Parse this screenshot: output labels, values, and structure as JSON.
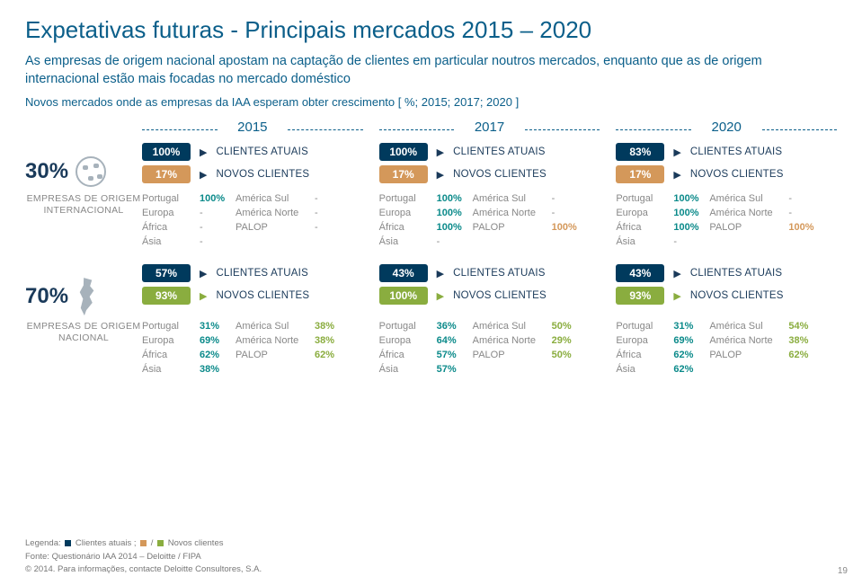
{
  "title": "Expetativas futuras - Principais mercados 2015 – 2020",
  "subtitle": "As empresas de origem nacional apostam na captação de clientes em particular noutros mercados, enquanto que as de origem internacional estão mais focadas no mercado doméstico",
  "context": "Novos mercados onde as empresas da IAA esperam obter crescimento [ %; 2015; 2017; 2020 ]",
  "years": {
    "y15": "2015",
    "y17": "2017",
    "y20": "2020"
  },
  "labels": {
    "clientes_atuais": "CLIENTES ATUAIS",
    "novos_clientes": "NOVOS CLIENTES",
    "emp_int": "EMPRESAS DE ORIGEM INTERNACIONAL",
    "emp_nac": "EMPRESAS DE ORIGEM NACIONAL",
    "portugal": "Portugal",
    "europa": "Europa",
    "africa": "África",
    "asia": "Ásia",
    "am_sul": "América Sul",
    "am_norte": "América Norte",
    "palop": "PALOP"
  },
  "intl": {
    "share": "30%",
    "y15": {
      "ca": "100%",
      "nc": "17%",
      "portugal": "100%",
      "europa": "-",
      "africa": "-",
      "asia": "-",
      "am_sul": "-",
      "am_norte": "-",
      "palop": "-"
    },
    "y17": {
      "ca": "100%",
      "nc": "17%",
      "portugal": "100%",
      "europa": "100%",
      "africa": "100%",
      "asia": "-",
      "am_sul": "-",
      "am_norte": "-",
      "palop": "100%"
    },
    "y20": {
      "ca": "83%",
      "nc": "17%",
      "portugal": "100%",
      "europa": "100%",
      "africa": "100%",
      "asia": "-",
      "am_sul": "-",
      "am_norte": "-",
      "palop": "100%"
    }
  },
  "nac": {
    "share": "70%",
    "y15": {
      "ca": "57%",
      "nc": "93%",
      "portugal": "31%",
      "europa": "69%",
      "africa": "62%",
      "asia": "38%",
      "am_sul": "38%",
      "am_norte": "38%",
      "palop": "62%"
    },
    "y17": {
      "ca": "43%",
      "nc": "100%",
      "portugal": "36%",
      "europa": "64%",
      "africa": "57%",
      "asia": "57%",
      "am_sul": "50%",
      "am_norte": "29%",
      "palop": "50%"
    },
    "y20": {
      "ca": "43%",
      "nc": "93%",
      "portugal": "31%",
      "europa": "69%",
      "africa": "62%",
      "asia": "62%",
      "am_sul": "54%",
      "am_norte": "38%",
      "palop": "62%"
    }
  },
  "footer": {
    "legenda_pre": "Legenda:",
    "legenda_ca": "Clientes atuais ;",
    "legenda_sep": "/",
    "legenda_nc": "Novos clientes",
    "fonte": "Fonte: Questionário IAA 2014 – Deloitte / FIPA",
    "copyright": "© 2014. Para informações, contacte Deloitte Consultores, S.A.",
    "page": "19"
  },
  "colors": {
    "title": "#0b5f8a",
    "ca_pill": "#003a5d",
    "intl_nc": "#d4985a",
    "nac_nc": "#8aad3f",
    "teal": "#0b8a8a",
    "gray": "#888888",
    "bg": "#ffffff"
  }
}
